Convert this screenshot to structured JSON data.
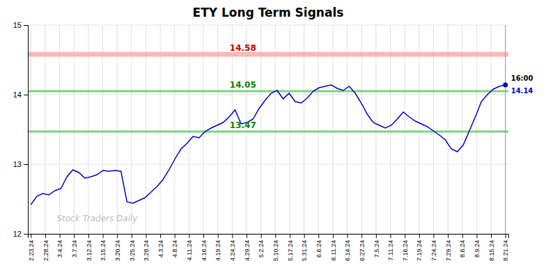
{
  "chart_data": {
    "type": "line",
    "title": "ETY Long Term Signals",
    "color": "#0000cc",
    "values": [
      12.42,
      12.54,
      12.58,
      12.56,
      12.62,
      12.65,
      12.82,
      12.92,
      12.88,
      12.8,
      12.82,
      12.85,
      12.91,
      12.9,
      12.91,
      12.9,
      12.46,
      12.44,
      12.48,
      12.52,
      12.6,
      12.68,
      12.78,
      12.92,
      13.08,
      13.22,
      13.3,
      13.4,
      13.38,
      13.47,
      13.52,
      13.56,
      13.6,
      13.68,
      13.78,
      13.58,
      13.6,
      13.65,
      13.8,
      13.92,
      14.02,
      14.06,
      13.94,
      14.02,
      13.9,
      13.88,
      13.95,
      14.05,
      14.1,
      14.12,
      14.14,
      14.09,
      14.06,
      14.12,
      14.02,
      13.88,
      13.72,
      13.6,
      13.56,
      13.52,
      13.56,
      13.65,
      13.75,
      13.68,
      13.62,
      13.58,
      13.54,
      13.48,
      13.42,
      13.35,
      13.22,
      13.18,
      13.28,
      13.48,
      13.68,
      13.9,
      14.0,
      14.08,
      14.12,
      14.14
    ],
    "xlim": [
      -0.5,
      79.5
    ],
    "xticks": [
      {
        "value": 0,
        "label": "2.23.24"
      },
      {
        "value": 2.393939,
        "label": "2.28.24"
      },
      {
        "value": 4.787879,
        "label": "3.4.24"
      },
      {
        "value": 7.181818,
        "label": "3.7.24"
      },
      {
        "value": 9.575758,
        "label": "3.12.24"
      },
      {
        "value": 11.969697,
        "label": "3.15.24"
      },
      {
        "value": 14.363636,
        "label": "3.20.24"
      },
      {
        "value": 16.757576,
        "label": "3.25.24"
      },
      {
        "value": 19.151515,
        "label": "3.28.24"
      },
      {
        "value": 21.545455,
        "label": "4.3.24"
      },
      {
        "value": 23.939394,
        "label": "4.8.24"
      },
      {
        "value": 26.333333,
        "label": "4.11.24"
      },
      {
        "value": 28.727273,
        "label": "4.16.24"
      },
      {
        "value": 31.121212,
        "label": "4.19.24"
      },
      {
        "value": 33.515152,
        "label": "4.24.24"
      },
      {
        "value": 35.909091,
        "label": "4.29.24"
      },
      {
        "value": 38.30303,
        "label": "5.2.24"
      },
      {
        "value": 40.69697,
        "label": "5.10.24"
      },
      {
        "value": 43.090909,
        "label": "5.17.24"
      },
      {
        "value": 45.484848,
        "label": "5.31.24"
      },
      {
        "value": 47.878788,
        "label": "6.6.24"
      },
      {
        "value": 50.272727,
        "label": "6.11.24"
      },
      {
        "value": 52.666667,
        "label": "6.14.24"
      },
      {
        "value": 55.060606,
        "label": "6.27.24"
      },
      {
        "value": 57.454545,
        "label": "7.5.24"
      },
      {
        "value": 59.848485,
        "label": "7.11.24"
      },
      {
        "value": 62.242424,
        "label": "7.16.24"
      },
      {
        "value": 64.636364,
        "label": "7.19.24"
      },
      {
        "value": 67.030303,
        "label": "7.24.24"
      },
      {
        "value": 69.424242,
        "label": "7.29.24"
      },
      {
        "value": 71.818182,
        "label": "8.6.24"
      },
      {
        "value": 74.212121,
        "label": "8.9.24"
      },
      {
        "value": 76.606061,
        "label": "8.15.24"
      },
      {
        "value": 79,
        "label": "8.21.24"
      }
    ],
    "ylim": [
      12,
      15
    ],
    "yticks": [
      12,
      13,
      14,
      15
    ],
    "grid": true,
    "annotations": [
      {
        "type": "hline",
        "value": 14.58,
        "label": "14.58",
        "color": "#ffaaaa",
        "label_color": "#cc0000"
      },
      {
        "type": "hline",
        "value": 14.05,
        "label": "14.05",
        "color": "#66cc66",
        "label_color": "#008800"
      },
      {
        "type": "hline",
        "value": 13.47,
        "label": "13.47",
        "color": "#66cc66",
        "label_color": "#008800"
      },
      {
        "type": "last_time",
        "text": "16:00"
      },
      {
        "type": "last_price",
        "value": 14.14,
        "label": "14.14"
      }
    ],
    "watermark": "Stock Traders Daily"
  }
}
